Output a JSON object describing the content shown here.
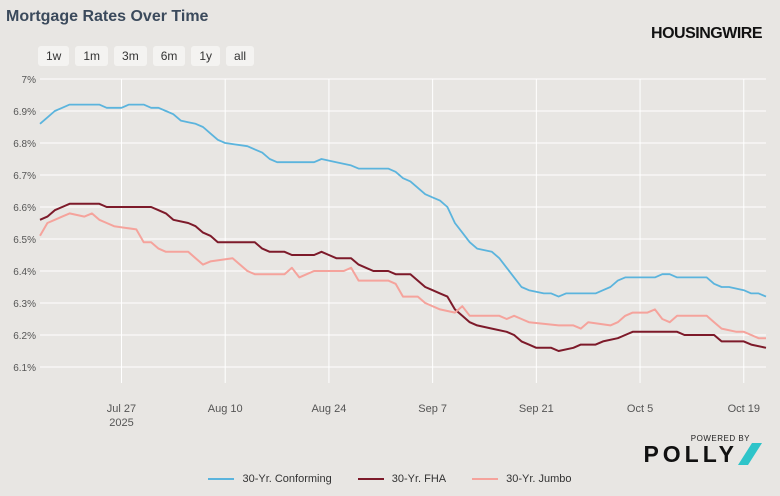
{
  "title": "Mortgage Rates Over Time",
  "range_buttons": [
    "1w",
    "1m",
    "3m",
    "6m",
    "1y",
    "all"
  ],
  "brand": "HOUSINGWIRE",
  "sponsor": {
    "powered_by": "POWERED BY",
    "name": "POLLY"
  },
  "colors": {
    "conforming": "#5bb4dd",
    "fha": "#7d1a2a",
    "jumbo": "#f5a39c",
    "background": "#e8e6e3",
    "grid": "#ffffff"
  },
  "chart_data": {
    "type": "line",
    "title": "Mortgage Rates Over Time",
    "xlabel": "",
    "ylabel": "",
    "x_range": [
      "2025-07-16",
      "2025-10-22"
    ],
    "ylim": [
      6.05,
      7.0
    ],
    "y_ticks": [
      "7%",
      "6.9%",
      "6.8%",
      "6.7%",
      "6.6%",
      "6.5%",
      "6.4%",
      "6.3%",
      "6.2%",
      "6.1%"
    ],
    "x_ticks": [
      {
        "date": "2025-07-27",
        "label": "Jul 27",
        "sublabel": "2025"
      },
      {
        "date": "2025-08-10",
        "label": "Aug 10",
        "sublabel": ""
      },
      {
        "date": "2025-08-24",
        "label": "Aug 24",
        "sublabel": ""
      },
      {
        "date": "2025-09-07",
        "label": "Sep 7",
        "sublabel": ""
      },
      {
        "date": "2025-09-21",
        "label": "Sep 21",
        "sublabel": ""
      },
      {
        "date": "2025-10-05",
        "label": "Oct 5",
        "sublabel": ""
      },
      {
        "date": "2025-10-19",
        "label": "Oct 19",
        "sublabel": ""
      }
    ],
    "grid": true,
    "legend_position": "bottom-center",
    "series": [
      {
        "name": "30-Yr. Conforming",
        "color": "#5bb4dd",
        "points": [
          [
            "2025-07-16",
            6.86
          ],
          [
            "2025-07-17",
            6.88
          ],
          [
            "2025-07-18",
            6.9
          ],
          [
            "2025-07-19",
            6.91
          ],
          [
            "2025-07-20",
            6.92
          ],
          [
            "2025-07-24",
            6.92
          ],
          [
            "2025-07-25",
            6.91
          ],
          [
            "2025-07-27",
            6.91
          ],
          [
            "2025-07-28",
            6.92
          ],
          [
            "2025-07-30",
            6.92
          ],
          [
            "2025-07-31",
            6.91
          ],
          [
            "2025-08-01",
            6.91
          ],
          [
            "2025-08-02",
            6.9
          ],
          [
            "2025-08-03",
            6.89
          ],
          [
            "2025-08-04",
            6.87
          ],
          [
            "2025-08-05",
            6.865
          ],
          [
            "2025-08-06",
            6.86
          ],
          [
            "2025-08-07",
            6.85
          ],
          [
            "2025-08-08",
            6.83
          ],
          [
            "2025-08-09",
            6.81
          ],
          [
            "2025-08-10",
            6.8
          ],
          [
            "2025-08-13",
            6.79
          ],
          [
            "2025-08-14",
            6.78
          ],
          [
            "2025-08-15",
            6.77
          ],
          [
            "2025-08-16",
            6.75
          ],
          [
            "2025-08-17",
            6.74
          ],
          [
            "2025-08-22",
            6.74
          ],
          [
            "2025-08-23",
            6.75
          ],
          [
            "2025-08-25",
            6.74
          ],
          [
            "2025-08-27",
            6.73
          ],
          [
            "2025-08-28",
            6.72
          ],
          [
            "2025-09-01",
            6.72
          ],
          [
            "2025-09-02",
            6.71
          ],
          [
            "2025-09-03",
            6.69
          ],
          [
            "2025-09-04",
            6.68
          ],
          [
            "2025-09-05",
            6.66
          ],
          [
            "2025-09-06",
            6.64
          ],
          [
            "2025-09-07",
            6.63
          ],
          [
            "2025-09-08",
            6.62
          ],
          [
            "2025-09-09",
            6.6
          ],
          [
            "2025-09-10",
            6.55
          ],
          [
            "2025-09-11",
            6.52
          ],
          [
            "2025-09-12",
            6.49
          ],
          [
            "2025-09-13",
            6.47
          ],
          [
            "2025-09-15",
            6.46
          ],
          [
            "2025-09-16",
            6.44
          ],
          [
            "2025-09-17",
            6.41
          ],
          [
            "2025-09-18",
            6.38
          ],
          [
            "2025-09-19",
            6.35
          ],
          [
            "2025-09-20",
            6.34
          ],
          [
            "2025-09-22",
            6.33
          ],
          [
            "2025-09-23",
            6.33
          ],
          [
            "2025-09-24",
            6.32
          ],
          [
            "2025-09-25",
            6.33
          ],
          [
            "2025-09-27",
            6.33
          ],
          [
            "2025-09-29",
            6.33
          ],
          [
            "2025-09-30",
            6.34
          ],
          [
            "2025-10-01",
            6.35
          ],
          [
            "2025-10-02",
            6.37
          ],
          [
            "2025-10-03",
            6.38
          ],
          [
            "2025-10-07",
            6.38
          ],
          [
            "2025-10-08",
            6.39
          ],
          [
            "2025-10-09",
            6.39
          ],
          [
            "2025-10-10",
            6.38
          ],
          [
            "2025-10-14",
            6.38
          ],
          [
            "2025-10-15",
            6.36
          ],
          [
            "2025-10-16",
            6.35
          ],
          [
            "2025-10-17",
            6.35
          ],
          [
            "2025-10-19",
            6.34
          ],
          [
            "2025-10-20",
            6.33
          ],
          [
            "2025-10-21",
            6.33
          ],
          [
            "2025-10-22",
            6.32
          ]
        ]
      },
      {
        "name": "30-Yr. FHA",
        "color": "#7d1a2a",
        "points": [
          [
            "2025-07-16",
            6.56
          ],
          [
            "2025-07-17",
            6.57
          ],
          [
            "2025-07-18",
            6.59
          ],
          [
            "2025-07-19",
            6.6
          ],
          [
            "2025-07-20",
            6.61
          ],
          [
            "2025-07-24",
            6.61
          ],
          [
            "2025-07-25",
            6.6
          ],
          [
            "2025-07-31",
            6.6
          ],
          [
            "2025-08-01",
            6.59
          ],
          [
            "2025-08-02",
            6.58
          ],
          [
            "2025-08-03",
            6.56
          ],
          [
            "2025-08-05",
            6.55
          ],
          [
            "2025-08-06",
            6.54
          ],
          [
            "2025-08-07",
            6.52
          ],
          [
            "2025-08-08",
            6.51
          ],
          [
            "2025-08-09",
            6.49
          ],
          [
            "2025-08-14",
            6.49
          ],
          [
            "2025-08-15",
            6.47
          ],
          [
            "2025-08-16",
            6.46
          ],
          [
            "2025-08-18",
            6.46
          ],
          [
            "2025-08-19",
            6.45
          ],
          [
            "2025-08-22",
            6.45
          ],
          [
            "2025-08-23",
            6.46
          ],
          [
            "2025-08-24",
            6.45
          ],
          [
            "2025-08-25",
            6.44
          ],
          [
            "2025-08-27",
            6.44
          ],
          [
            "2025-08-28",
            6.42
          ],
          [
            "2025-08-29",
            6.41
          ],
          [
            "2025-08-30",
            6.4
          ],
          [
            "2025-09-01",
            6.4
          ],
          [
            "2025-09-02",
            6.39
          ],
          [
            "2025-09-04",
            6.39
          ],
          [
            "2025-09-05",
            6.37
          ],
          [
            "2025-09-06",
            6.35
          ],
          [
            "2025-09-07",
            6.34
          ],
          [
            "2025-09-08",
            6.33
          ],
          [
            "2025-09-09",
            6.32
          ],
          [
            "2025-09-10",
            6.28
          ],
          [
            "2025-09-11",
            6.26
          ],
          [
            "2025-09-12",
            6.24
          ],
          [
            "2025-09-13",
            6.23
          ],
          [
            "2025-09-15",
            6.22
          ],
          [
            "2025-09-17",
            6.21
          ],
          [
            "2025-09-18",
            6.2
          ],
          [
            "2025-09-19",
            6.18
          ],
          [
            "2025-09-20",
            6.17
          ],
          [
            "2025-09-21",
            6.16
          ],
          [
            "2025-09-23",
            6.16
          ],
          [
            "2025-09-24",
            6.15
          ],
          [
            "2025-09-26",
            6.16
          ],
          [
            "2025-09-27",
            6.17
          ],
          [
            "2025-09-29",
            6.17
          ],
          [
            "2025-09-30",
            6.18
          ],
          [
            "2025-10-02",
            6.19
          ],
          [
            "2025-10-03",
            6.2
          ],
          [
            "2025-10-04",
            6.21
          ],
          [
            "2025-10-10",
            6.21
          ],
          [
            "2025-10-11",
            6.2
          ],
          [
            "2025-10-15",
            6.2
          ],
          [
            "2025-10-16",
            6.18
          ],
          [
            "2025-10-19",
            6.18
          ],
          [
            "2025-10-20",
            6.17
          ],
          [
            "2025-10-22",
            6.16
          ]
        ]
      },
      {
        "name": "30-Yr. Jumbo",
        "color": "#f5a39c",
        "points": [
          [
            "2025-07-16",
            6.51
          ],
          [
            "2025-07-17",
            6.55
          ],
          [
            "2025-07-18",
            6.56
          ],
          [
            "2025-07-19",
            6.57
          ],
          [
            "2025-07-20",
            6.58
          ],
          [
            "2025-07-22",
            6.57
          ],
          [
            "2025-07-23",
            6.58
          ],
          [
            "2025-07-24",
            6.56
          ],
          [
            "2025-07-25",
            6.55
          ],
          [
            "2025-07-26",
            6.54
          ],
          [
            "2025-07-29",
            6.53
          ],
          [
            "2025-07-30",
            6.49
          ],
          [
            "2025-07-31",
            6.49
          ],
          [
            "2025-08-01",
            6.47
          ],
          [
            "2025-08-02",
            6.46
          ],
          [
            "2025-08-05",
            6.46
          ],
          [
            "2025-08-06",
            6.44
          ],
          [
            "2025-08-07",
            6.42
          ],
          [
            "2025-08-08",
            6.43
          ],
          [
            "2025-08-11",
            6.44
          ],
          [
            "2025-08-12",
            6.42
          ],
          [
            "2025-08-13",
            6.4
          ],
          [
            "2025-08-14",
            6.39
          ],
          [
            "2025-08-18",
            6.39
          ],
          [
            "2025-08-19",
            6.41
          ],
          [
            "2025-08-20",
            6.38
          ],
          [
            "2025-08-21",
            6.39
          ],
          [
            "2025-08-22",
            6.4
          ],
          [
            "2025-08-26",
            6.4
          ],
          [
            "2025-08-27",
            6.41
          ],
          [
            "2025-08-28",
            6.37
          ],
          [
            "2025-08-30",
            6.37
          ],
          [
            "2025-09-01",
            6.37
          ],
          [
            "2025-09-02",
            6.36
          ],
          [
            "2025-09-03",
            6.32
          ],
          [
            "2025-09-05",
            6.32
          ],
          [
            "2025-09-06",
            6.3
          ],
          [
            "2025-09-08",
            6.28
          ],
          [
            "2025-09-10",
            6.27
          ],
          [
            "2025-09-11",
            6.29
          ],
          [
            "2025-09-12",
            6.26
          ],
          [
            "2025-09-14",
            6.26
          ],
          [
            "2025-09-16",
            6.26
          ],
          [
            "2025-09-17",
            6.25
          ],
          [
            "2025-09-18",
            6.26
          ],
          [
            "2025-09-19",
            6.25
          ],
          [
            "2025-09-20",
            6.24
          ],
          [
            "2025-09-24",
            6.23
          ],
          [
            "2025-09-26",
            6.23
          ],
          [
            "2025-09-27",
            6.22
          ],
          [
            "2025-09-28",
            6.24
          ],
          [
            "2025-10-01",
            6.23
          ],
          [
            "2025-10-02",
            6.24
          ],
          [
            "2025-10-03",
            6.26
          ],
          [
            "2025-10-04",
            6.27
          ],
          [
            "2025-10-06",
            6.27
          ],
          [
            "2025-10-07",
            6.28
          ],
          [
            "2025-10-08",
            6.25
          ],
          [
            "2025-10-09",
            6.24
          ],
          [
            "2025-10-10",
            6.26
          ],
          [
            "2025-10-14",
            6.26
          ],
          [
            "2025-10-15",
            6.24
          ],
          [
            "2025-10-16",
            6.22
          ],
          [
            "2025-10-18",
            6.21
          ],
          [
            "2025-10-19",
            6.21
          ],
          [
            "2025-10-20",
            6.2
          ],
          [
            "2025-10-21",
            6.19
          ],
          [
            "2025-10-22",
            6.19
          ]
        ]
      }
    ]
  }
}
